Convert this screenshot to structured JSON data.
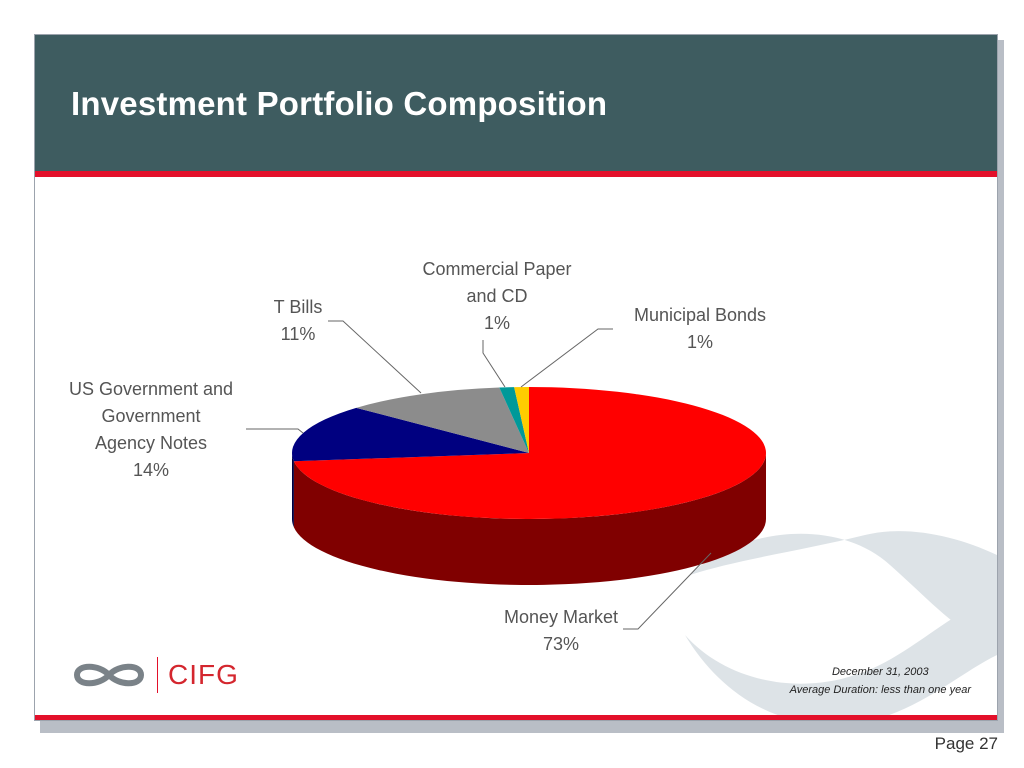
{
  "slide": {
    "title": "Investment Portfolio Composition",
    "footnote_date": "December 31, 2003",
    "footnote_duration": "Average Duration: less than one year",
    "page": "Page 27",
    "logo_text": "CIFG"
  },
  "chart_data": {
    "type": "pie",
    "title": "",
    "three_d": true,
    "slices": [
      {
        "label": "Money Market",
        "value": 73,
        "value_label": "73%",
        "color": "#ff0000"
      },
      {
        "label": "US Government and Government Agency Notes",
        "value": 14,
        "value_label": "14%",
        "color": "#000080"
      },
      {
        "label": "T Bills",
        "value": 11,
        "value_label": "11%",
        "color": "#8c8c8c"
      },
      {
        "label": "Commercial Paper and CD",
        "value": 1,
        "value_label": "1%",
        "color": "#009999"
      },
      {
        "label": "Municipal Bonds",
        "value": 1,
        "value_label": "1%",
        "color": "#ffcc00"
      }
    ]
  }
}
